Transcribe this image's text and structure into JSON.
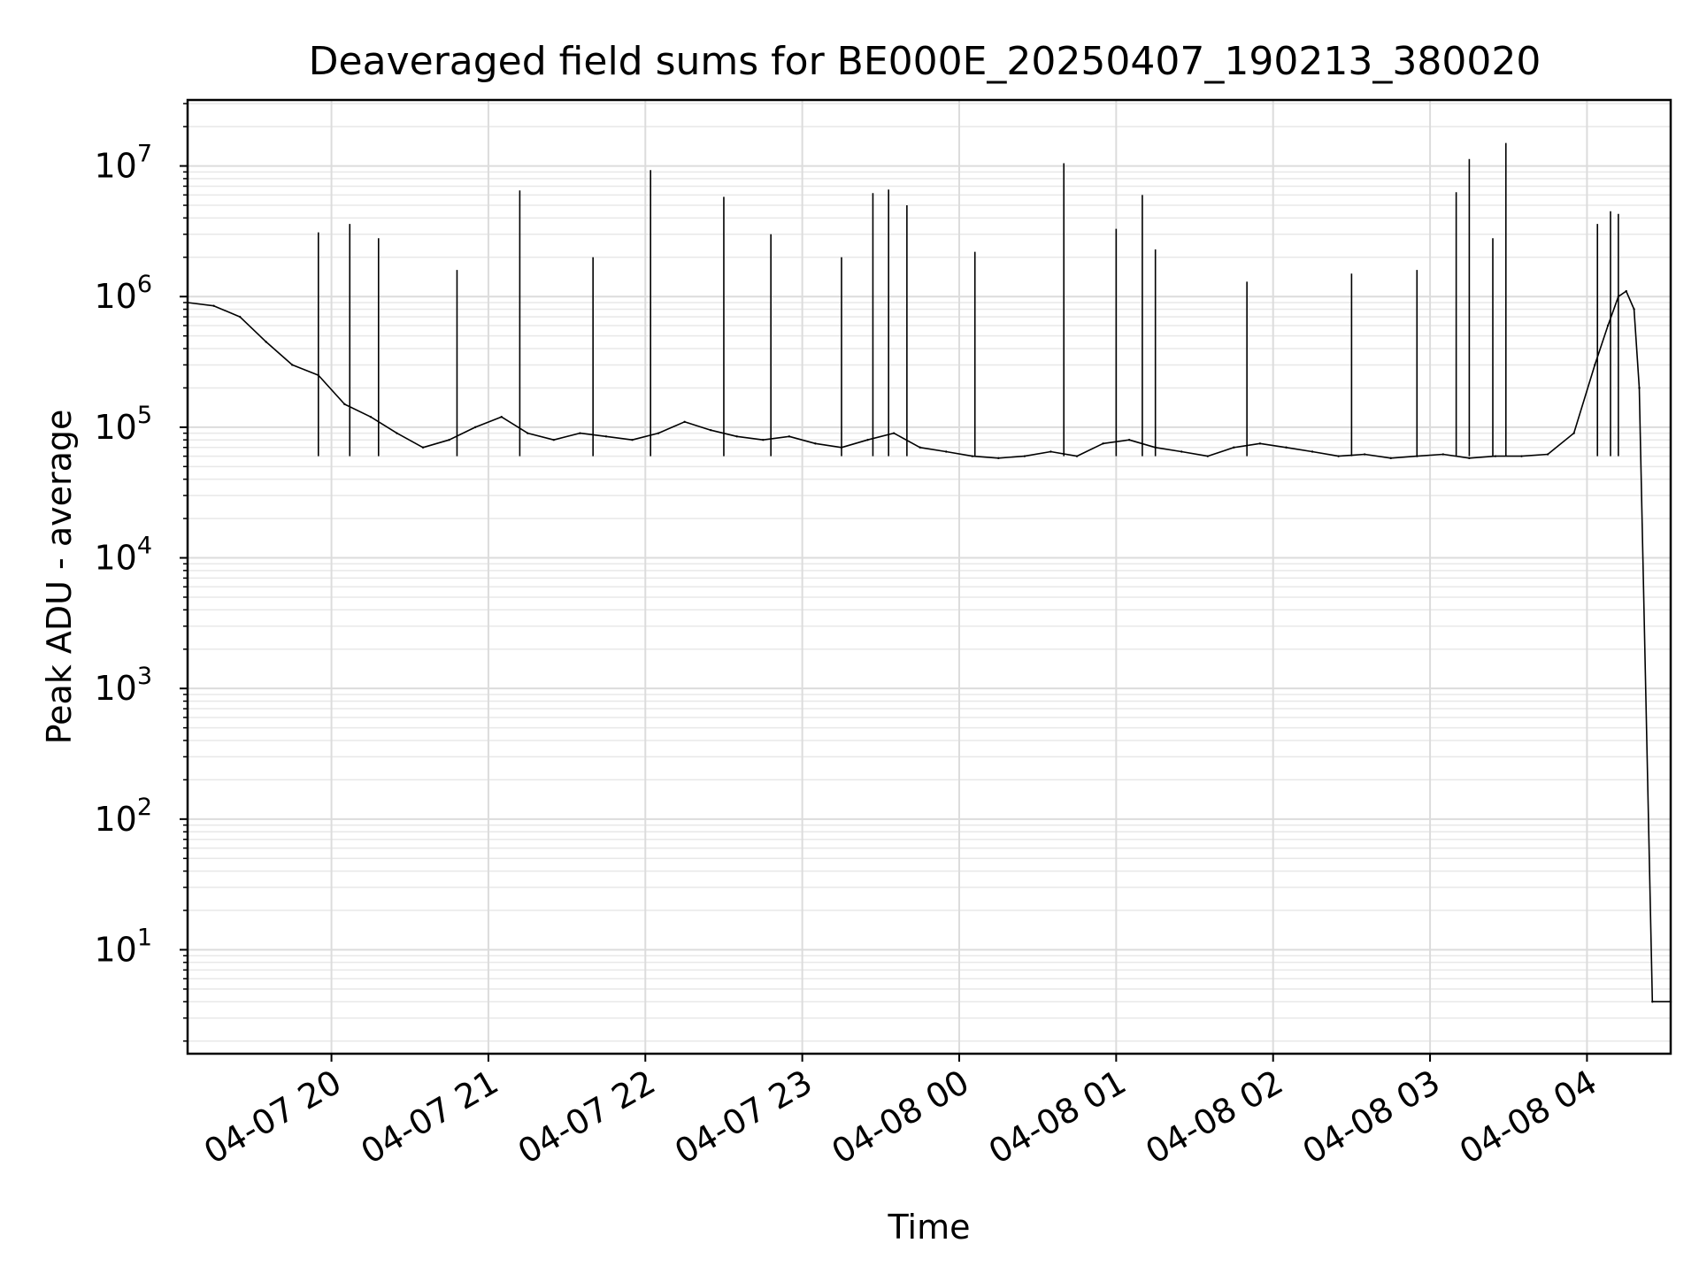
{
  "chart_data": {
    "type": "line",
    "title": "Deaveraged field sums for BE000E_20250407_190213_380020",
    "xlabel": "Time",
    "ylabel": "Peak ADU - average",
    "yscale": "log",
    "grid": true,
    "xlim": [
      "2025-04-07 19:05",
      "2025-04-08 04:32"
    ],
    "ylim": [
      1.6,
      32000000
    ],
    "x_ticks": [
      {
        "t": "2025-04-07 20:00",
        "label": "04-07 20"
      },
      {
        "t": "2025-04-07 21:00",
        "label": "04-07 21"
      },
      {
        "t": "2025-04-07 22:00",
        "label": "04-07 22"
      },
      {
        "t": "2025-04-07 23:00",
        "label": "04-07 23"
      },
      {
        "t": "2025-04-08 00:00",
        "label": "04-08 00"
      },
      {
        "t": "2025-04-08 01:00",
        "label": "04-08 01"
      },
      {
        "t": "2025-04-08 02:00",
        "label": "04-08 02"
      },
      {
        "t": "2025-04-08 03:00",
        "label": "04-08 03"
      },
      {
        "t": "2025-04-08 04:00",
        "label": "04-08 04"
      }
    ],
    "y_ticks": [
      {
        "value": 10,
        "base": "10",
        "exp": "1"
      },
      {
        "value": 100,
        "base": "10",
        "exp": "2"
      },
      {
        "value": 1000,
        "base": "10",
        "exp": "3"
      },
      {
        "value": 10000,
        "base": "10",
        "exp": "4"
      },
      {
        "value": 100000,
        "base": "10",
        "exp": "5"
      },
      {
        "value": 1000000,
        "base": "10",
        "exp": "6"
      },
      {
        "value": 10000000,
        "base": "10",
        "exp": "7"
      }
    ],
    "series": [
      {
        "color": "#000000",
        "x": [
          "2025-04-07 19:05",
          "2025-04-07 19:15",
          "2025-04-07 19:25",
          "2025-04-07 19:35",
          "2025-04-07 19:45",
          "2025-04-07 19:55",
          "2025-04-07 20:05",
          "2025-04-07 20:15",
          "2025-04-07 20:25",
          "2025-04-07 20:35",
          "2025-04-07 20:45",
          "2025-04-07 20:55",
          "2025-04-07 21:05",
          "2025-04-07 21:15",
          "2025-04-07 21:25",
          "2025-04-07 21:35",
          "2025-04-07 21:45",
          "2025-04-07 21:55",
          "2025-04-07 22:05",
          "2025-04-07 22:15",
          "2025-04-07 22:25",
          "2025-04-07 22:35",
          "2025-04-07 22:45",
          "2025-04-07 22:55",
          "2025-04-07 23:05",
          "2025-04-07 23:15",
          "2025-04-07 23:25",
          "2025-04-07 23:35",
          "2025-04-07 23:45",
          "2025-04-07 23:55",
          "2025-04-08 00:05",
          "2025-04-08 00:15",
          "2025-04-08 00:25",
          "2025-04-08 00:35",
          "2025-04-08 00:45",
          "2025-04-08 00:55",
          "2025-04-08 01:05",
          "2025-04-08 01:15",
          "2025-04-08 01:25",
          "2025-04-08 01:35",
          "2025-04-08 01:45",
          "2025-04-08 01:55",
          "2025-04-08 02:05",
          "2025-04-08 02:15",
          "2025-04-08 02:25",
          "2025-04-08 02:35",
          "2025-04-08 02:45",
          "2025-04-08 02:55",
          "2025-04-08 03:05",
          "2025-04-08 03:15",
          "2025-04-08 03:25",
          "2025-04-08 03:35",
          "2025-04-08 03:45",
          "2025-04-08 03:55",
          "2025-04-08 04:03",
          "2025-04-08 04:08",
          "2025-04-08 04:12",
          "2025-04-08 04:15",
          "2025-04-08 04:18",
          "2025-04-08 04:20",
          "2025-04-08 04:25",
          "2025-04-08 04:32"
        ],
        "values": [
          900000,
          850000,
          700000,
          450000,
          300000,
          250000,
          150000,
          120000,
          90000,
          70000,
          80000,
          100000,
          120000,
          90000,
          80000,
          90000,
          85000,
          80000,
          90000,
          110000,
          95000,
          85000,
          80000,
          85000,
          75000,
          70000,
          80000,
          90000,
          70000,
          65000,
          60000,
          58000,
          60000,
          65000,
          60000,
          75000,
          80000,
          70000,
          65000,
          60000,
          70000,
          75000,
          70000,
          65000,
          60000,
          62000,
          58000,
          60000,
          62000,
          58000,
          60000,
          60000,
          62000,
          90000,
          300000,
          600000,
          1000000,
          1100000,
          800000,
          200000,
          4,
          4
        ]
      }
    ],
    "spikes": [
      {
        "t": "2025-04-07 19:55",
        "value": 3100000
      },
      {
        "t": "2025-04-07 20:07",
        "value": 3600000
      },
      {
        "t": "2025-04-07 20:18",
        "value": 2800000
      },
      {
        "t": "2025-04-07 20:48",
        "value": 1600000
      },
      {
        "t": "2025-04-07 21:12",
        "value": 6500000
      },
      {
        "t": "2025-04-07 21:40",
        "value": 2000000
      },
      {
        "t": "2025-04-07 22:02",
        "value": 9300000
      },
      {
        "t": "2025-04-07 22:30",
        "value": 5800000
      },
      {
        "t": "2025-04-07 22:48",
        "value": 3000000
      },
      {
        "t": "2025-04-07 23:15",
        "value": 2000000
      },
      {
        "t": "2025-04-07 23:27",
        "value": 6200000
      },
      {
        "t": "2025-04-07 23:33",
        "value": 6600000
      },
      {
        "t": "2025-04-07 23:40",
        "value": 5000000
      },
      {
        "t": "2025-04-08 00:06",
        "value": 2200000
      },
      {
        "t": "2025-04-08 00:40",
        "value": 10500000
      },
      {
        "t": "2025-04-08 01:00",
        "value": 3300000
      },
      {
        "t": "2025-04-08 01:10",
        "value": 6000000
      },
      {
        "t": "2025-04-08 01:15",
        "value": 2300000
      },
      {
        "t": "2025-04-08 01:50",
        "value": 1300000
      },
      {
        "t": "2025-04-08 02:30",
        "value": 1500000
      },
      {
        "t": "2025-04-08 02:55",
        "value": 1600000
      },
      {
        "t": "2025-04-08 03:10",
        "value": 6300000
      },
      {
        "t": "2025-04-08 03:15",
        "value": 11300000
      },
      {
        "t": "2025-04-08 03:24",
        "value": 2800000
      },
      {
        "t": "2025-04-08 03:29",
        "value": 15000000
      },
      {
        "t": "2025-04-08 04:04",
        "value": 3600000
      },
      {
        "t": "2025-04-08 04:09",
        "value": 4500000
      },
      {
        "t": "2025-04-08 04:12",
        "value": 4300000
      }
    ]
  }
}
